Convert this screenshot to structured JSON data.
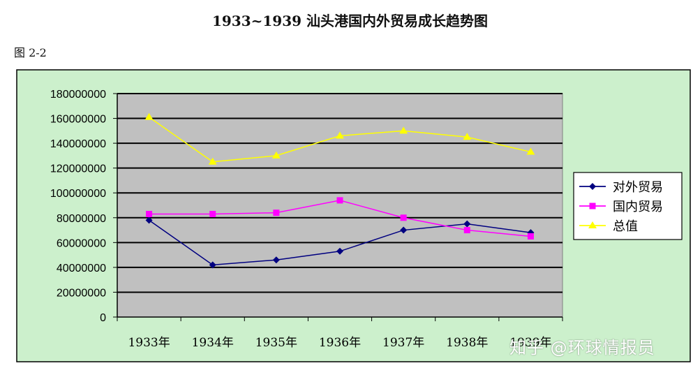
{
  "title": "1933~1939 汕头港国内外贸易成长趋势图",
  "figure_label": "图 2-2",
  "watermark": "知乎 @环球情报员",
  "colors": {
    "outer_bg": "#ccf0cc",
    "plot_bg": "#c0c0c0",
    "series1": "#000080",
    "series2": "#ff00ff",
    "series3": "#ffff00"
  },
  "chart_data": {
    "type": "line",
    "title": "1933~1939 汕头港国内外贸易成长趋势图",
    "categories": [
      "1933年",
      "1934年",
      "1935年",
      "1936年",
      "1937年",
      "1938年",
      "1939年"
    ],
    "series": [
      {
        "name": "对外贸易",
        "marker": "diamond",
        "color": "#000080",
        "values": [
          78000000,
          42000000,
          46000000,
          53000000,
          70000000,
          75000000,
          68000000
        ]
      },
      {
        "name": "国内贸易",
        "marker": "square",
        "color": "#ff00ff",
        "values": [
          83000000,
          83000000,
          84000000,
          94000000,
          80000000,
          70000000,
          65000000
        ]
      },
      {
        "name": "总值",
        "marker": "triangle",
        "color": "#ffff00",
        "values": [
          161000000,
          125000000,
          130000000,
          146000000,
          150000000,
          145000000,
          133000000
        ]
      }
    ],
    "yticks": [
      "0",
      "20000000",
      "40000000",
      "60000000",
      "80000000",
      "100000000",
      "120000000",
      "140000000",
      "160000000",
      "180000000"
    ],
    "ylim": [
      0,
      180000000
    ],
    "grid": true,
    "legend": "right"
  }
}
